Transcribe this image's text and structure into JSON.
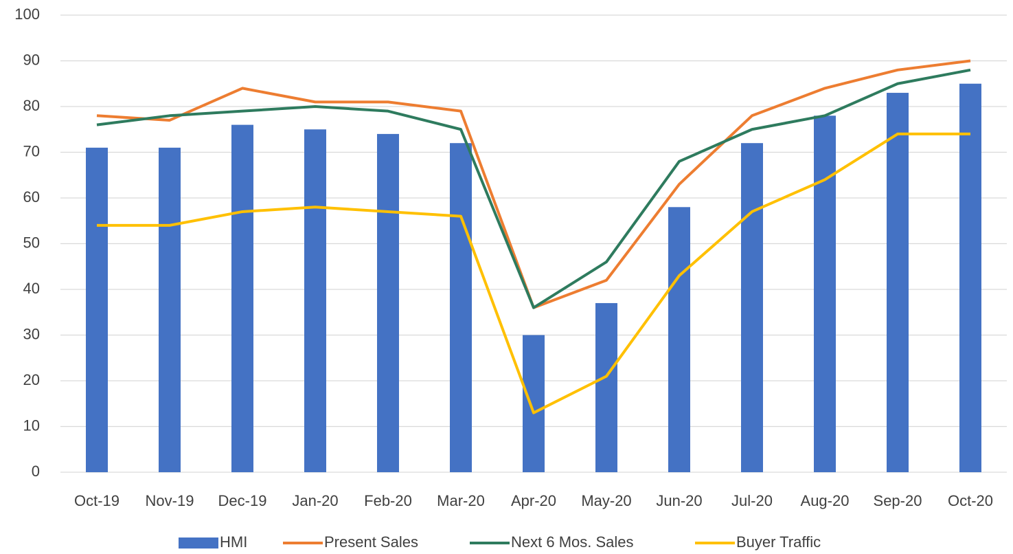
{
  "chart_data": {
    "type": "bar",
    "categories": [
      "Oct-19",
      "Nov-19",
      "Dec-19",
      "Jan-20",
      "Feb-20",
      "Mar-20",
      "Apr-20",
      "May-20",
      "Jun-20",
      "Jul-20",
      "Aug-20",
      "Sep-20",
      "Oct-20"
    ],
    "series": [
      {
        "name": "HMI",
        "type": "bar",
        "color": "#4472c4",
        "values": [
          71,
          71,
          76,
          75,
          74,
          72,
          30,
          37,
          58,
          72,
          78,
          83,
          85
        ]
      },
      {
        "name": "Present Sales",
        "type": "line",
        "color": "#ed7d31",
        "values": [
          78,
          77,
          84,
          81,
          81,
          79,
          36,
          42,
          63,
          78,
          84,
          88,
          90
        ]
      },
      {
        "name": "Next 6 Mos. Sales",
        "type": "line",
        "color": "#2e7b5e",
        "values": [
          76,
          78,
          79,
          80,
          79,
          75,
          36,
          46,
          68,
          75,
          78,
          85,
          88
        ]
      },
      {
        "name": "Buyer Traffic",
        "type": "line",
        "color": "#ffc000",
        "values": [
          54,
          54,
          57,
          58,
          57,
          56,
          13,
          21,
          43,
          57,
          64,
          74,
          74
        ]
      }
    ],
    "ylim": [
      0,
      100
    ],
    "yticks": [
      0,
      10,
      20,
      30,
      40,
      50,
      60,
      70,
      80,
      90,
      100
    ],
    "grid": true,
    "legend": "bottom"
  }
}
